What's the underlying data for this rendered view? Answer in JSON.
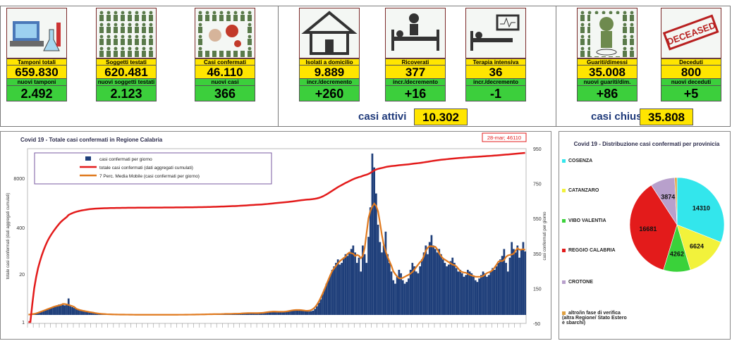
{
  "cards": [
    {
      "id": "tamponi",
      "label": "Tamponi totali",
      "value": "659.830",
      "sublabel": "nuovi tamponi",
      "subvalue": "2.492",
      "icon": "lab-test-icon"
    },
    {
      "id": "soggetti",
      "label": "Soggetti testati",
      "value": "620.481",
      "sublabel": "nuovi soggetti testati",
      "subvalue": "2.123",
      "icon": "people-grid-icon"
    },
    {
      "id": "casi",
      "label": "Casi confermati",
      "value": "46.110",
      "sublabel": "nuovi casi",
      "subvalue": "366",
      "icon": "virus-icon"
    },
    {
      "id": "isolati",
      "label": "Isolati a domicilio",
      "value": "9.889",
      "sublabel": "incr./decremento",
      "subvalue": "+260",
      "icon": "house-icon"
    },
    {
      "id": "ricoverati",
      "label": "Ricoverati",
      "value": "377",
      "sublabel": "incr./decremento",
      "subvalue": "+16",
      "icon": "hospital-bed-icon"
    },
    {
      "id": "terapia",
      "label": "Terapia intensiva",
      "value": "36",
      "sublabel": "incr./decremento",
      "subvalue": "-1",
      "icon": "icu-bed-icon"
    },
    {
      "id": "guariti",
      "label": "Guariti/dimessi",
      "value": "35.008",
      "sublabel": "nuovi guariti/dim.",
      "subvalue": "+86",
      "icon": "recovered-person-icon"
    },
    {
      "id": "deceduti",
      "label": "Deceduti",
      "value": "800",
      "sublabel": "nuovi deceduti",
      "subvalue": "+5",
      "icon": "deceased-stamp-icon"
    }
  ],
  "summary": {
    "attivi_label": "casi attivi",
    "attivi_value": "10.302",
    "chiusi_label": "casi chiusi",
    "chiusi_value": "35.808"
  },
  "deceased_stamp_text": "DECEASED",
  "colors": {
    "yellow": "#ffe500",
    "green": "#3ccf3c",
    "bars": "#1f3f7a",
    "cumulative": "#e31b1b",
    "moving_avg": "#e07a1f",
    "title": "#1f3a7a"
  },
  "main_chart": {
    "title": "Covid 19 - Totale casi confermati in Regione Calabria",
    "annotation": "28-mar; 46110",
    "left_axis_label": "totale casi confermati (dati aggregati cumulati)",
    "right_axis_label": "casi confermati  per giorno",
    "left_ticks": [
      "8000",
      "400",
      "20",
      "1"
    ],
    "right_ticks": [
      "950",
      "750",
      "550",
      "350",
      "150",
      "-50"
    ],
    "legend": [
      {
        "label": "casi confermati per giorno",
        "color": "#1f3f7a"
      },
      {
        "label": "totale casi confermati (dati aggregati cumulati)",
        "color": "#e31b1b"
      },
      {
        "label": "7 Perc. Media Mobile (casi confermati per giorno)",
        "color": "#e07a1f"
      }
    ]
  },
  "chart_data": [
    {
      "type": "line",
      "title": "Covid 19 - Totale casi confermati in Regione Calabria",
      "ylabel": "totale casi confermati (dati aggregati cumulati)",
      "y2label": "casi confermati  per giorno",
      "y_scale": "log",
      "y2lim": [
        -50,
        950
      ],
      "series": [
        {
          "name": "casi confermati per giorno",
          "type": "bar",
          "values": [
            0,
            0,
            2,
            5,
            8,
            12,
            15,
            20,
            25,
            30,
            35,
            38,
            40,
            45,
            48,
            55,
            60,
            62,
            58,
            55,
            60,
            95,
            50,
            45,
            40,
            35,
            30,
            28,
            25,
            20,
            20,
            22,
            18,
            15,
            12,
            10,
            8,
            8,
            6,
            5,
            5,
            4,
            4,
            3,
            3,
            3,
            2,
            2,
            2,
            2,
            2,
            2,
            2,
            2,
            1,
            1,
            1,
            1,
            1,
            1,
            1,
            1,
            1,
            1,
            1,
            1,
            1,
            1,
            1,
            1,
            1,
            1,
            1,
            1,
            1,
            1,
            1,
            1,
            1,
            1,
            1,
            2,
            2,
            1,
            1,
            2,
            2,
            2,
            3,
            3,
            2,
            3,
            3,
            3,
            4,
            4,
            5,
            5,
            4,
            4,
            5,
            6,
            5,
            5,
            6,
            7,
            8,
            6,
            6,
            7,
            8,
            8,
            9,
            10,
            10,
            12,
            12,
            10,
            11,
            12,
            10,
            9,
            10,
            12,
            14,
            16,
            18,
            20,
            20,
            22,
            20,
            18,
            16,
            15,
            18,
            20,
            22,
            24,
            26,
            28,
            30,
            32,
            30,
            28,
            26,
            24,
            22,
            20,
            22,
            25,
            35,
            50,
            70,
            90,
            120,
            150,
            180,
            200,
            230,
            260,
            280,
            300,
            320,
            290,
            300,
            330,
            350,
            340,
            360,
            380,
            400,
            360,
            300,
            330,
            250,
            400,
            350,
            300,
            450,
            620,
            930,
            850,
            700,
            520,
            420,
            360,
            400,
            480,
            350,
            300,
            250,
            200,
            180,
            220,
            260,
            240,
            200,
            180,
            190,
            210,
            260,
            300,
            280,
            250,
            240,
            280,
            320,
            360,
            400,
            350,
            420,
            460,
            400,
            380,
            360,
            380,
            350,
            320,
            300,
            280,
            290,
            310,
            330,
            300,
            270,
            250,
            260,
            240,
            220,
            230,
            260,
            250,
            240,
            220,
            200,
            190,
            210,
            230,
            250,
            240,
            220,
            230,
            250,
            270,
            260,
            280,
            300,
            320,
            340,
            380,
            300,
            250,
            330,
            420,
            380,
            360,
            400,
            330,
            380,
            420,
            366
          ]
        },
        {
          "name": "totale casi confermati (dati aggregati cumulati)",
          "type": "line",
          "endpoint": {
            "date": "28-mar",
            "value": 46110
          }
        },
        {
          "name": "7 Perc. Media Mobile (casi confermati per giorno)",
          "type": "line"
        }
      ]
    },
    {
      "type": "pie",
      "title": "Covid 19 - Distribuzione casi confermati per provinicia",
      "categories": [
        "COSENZA",
        "CATANZARO",
        "VIBO VALENTIA",
        "REGGIO CALABRIA",
        "CROTONE",
        "altro/in fase di verifica (altra Regione/ Stato Estero e sbarchi)"
      ],
      "values": [
        14310,
        6624,
        4262,
        16681,
        3874,
        359
      ],
      "colors": [
        "#33e6ec",
        "#f2f23b",
        "#3ad23a",
        "#e31b1b",
        "#b8a0cc",
        "#e0a040"
      ]
    }
  ]
}
